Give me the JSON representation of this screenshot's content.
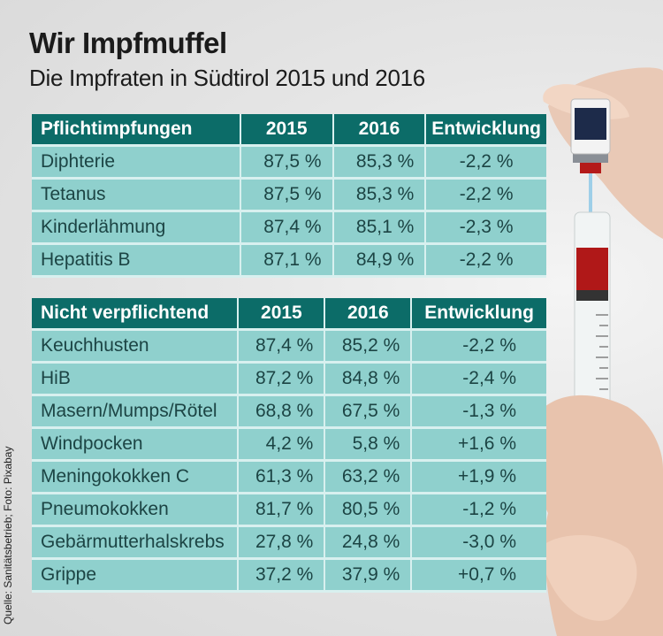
{
  "header": {
    "title": "Wir Impfmuffel",
    "subtitle": "Die Impfraten in Südtirol 2015 und 2016"
  },
  "source": "Quelle: Sanitätsbetrieb; Foto: Pixabay",
  "photo": {
    "subject": "syringe-and-vial-in-hand-photo"
  },
  "colors": {
    "header_bg": "#0c6c68",
    "cell_bg": "#8fd0cd",
    "cell_text": "#1c4444",
    "separator": "#d8f0ef"
  },
  "table1": {
    "headers": [
      "Pflichtimpfungen",
      "2015",
      "2016",
      "Entwicklung"
    ],
    "rows": [
      [
        "Diphterie",
        "87,5 %",
        "85,3 %",
        "-2,2 %"
      ],
      [
        "Tetanus",
        "87,5 %",
        "85,3 %",
        "-2,2 %"
      ],
      [
        "Kinderlähmung",
        "87,4 %",
        "85,1 %",
        "-2,3 %"
      ],
      [
        "Hepatitis B",
        "87,1 %",
        "84,9 %",
        "-2,2 %"
      ]
    ]
  },
  "table2": {
    "headers": [
      "Nicht verpflichtend",
      "2015",
      "2016",
      "Entwicklung"
    ],
    "rows": [
      [
        "Keuchhusten",
        "87,4 %",
        "85,2 %",
        "-2,2 %"
      ],
      [
        "HiB",
        "87,2 %",
        "84,8 %",
        "-2,4 %"
      ],
      [
        "Masern/Mumps/Rötel",
        "68,8 %",
        "67,5 %",
        "-1,3 %"
      ],
      [
        "Windpocken",
        "4,2 %",
        "5,8 %",
        "+1,6 %"
      ],
      [
        "Meningokokken C",
        "61,3 %",
        "63,2 %",
        "+1,9 %"
      ],
      [
        "Pneumokokken",
        "81,7 %",
        "80,5 %",
        "-1,2 %"
      ],
      [
        "Gebärmutterhalskrebs",
        "27,8 %",
        "24,8 %",
        "-3,0 %"
      ],
      [
        "Grippe",
        "37,2 %",
        "37,9 %",
        "+0,7 %"
      ]
    ]
  }
}
